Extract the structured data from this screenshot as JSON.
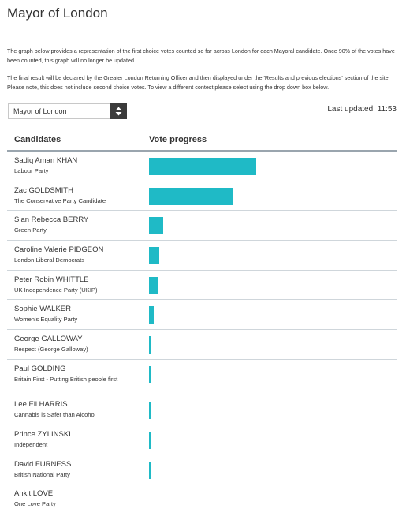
{
  "page": {
    "title": "Mayor of London",
    "intro_p1": "The graph below provides a representation of the first choice votes counted so far across London for each Mayoral candidate. Once 90% of the votes have been counted, this graph will no longer be updated.",
    "intro_p2": "The final result will be declared by the Greater London Returning Officer and then displayed under the 'Results and previous elections' section of the site. Please note, this does not include second choice votes. To view a different contest please select using the drop down box below."
  },
  "contest_select": {
    "selected": "Mayor of London"
  },
  "last_updated": "Last updated: 11:53",
  "table": {
    "col_candidates": "Candidates",
    "col_progress": "Vote progress"
  },
  "colors": {
    "bar": "#1fbac6",
    "rule": "#9aa5ae"
  },
  "candidates": [
    {
      "name": "Sadiq Aman KHAN",
      "party": "Labour Party",
      "progress": 0.44
    },
    {
      "name": "Zac GOLDSMITH",
      "party": "The Conservative Party Candidate",
      "progress": 0.342
    },
    {
      "name": "Sian Rebecca BERRY",
      "party": "Green Party",
      "progress": 0.058
    },
    {
      "name": "Caroline Valerie PIDGEON",
      "party": "London Liberal Democrats",
      "progress": 0.042
    },
    {
      "name": "Peter Robin WHITTLE",
      "party": "UK Independence Party (UKIP)",
      "progress": 0.04
    },
    {
      "name": "Sophie WALKER",
      "party": "Women's Equality Party",
      "progress": 0.02
    },
    {
      "name": "George GALLOWAY",
      "party": "Respect (George Galloway)",
      "progress": 0.011
    },
    {
      "name": "Paul GOLDING",
      "party": "Britain First - Putting British people first",
      "progress": 0.011
    },
    {
      "name": "Lee Eli HARRIS",
      "party": "Cannabis is Safer than Alcohol",
      "progress": 0.01
    },
    {
      "name": "Prince ZYLINSKI",
      "party": "Independent",
      "progress": 0.01
    },
    {
      "name": "David FURNESS",
      "party": "British National Party",
      "progress": 0.01
    },
    {
      "name": "Ankit LOVE",
      "party": "One Love Party",
      "progress": 0.0
    }
  ]
}
